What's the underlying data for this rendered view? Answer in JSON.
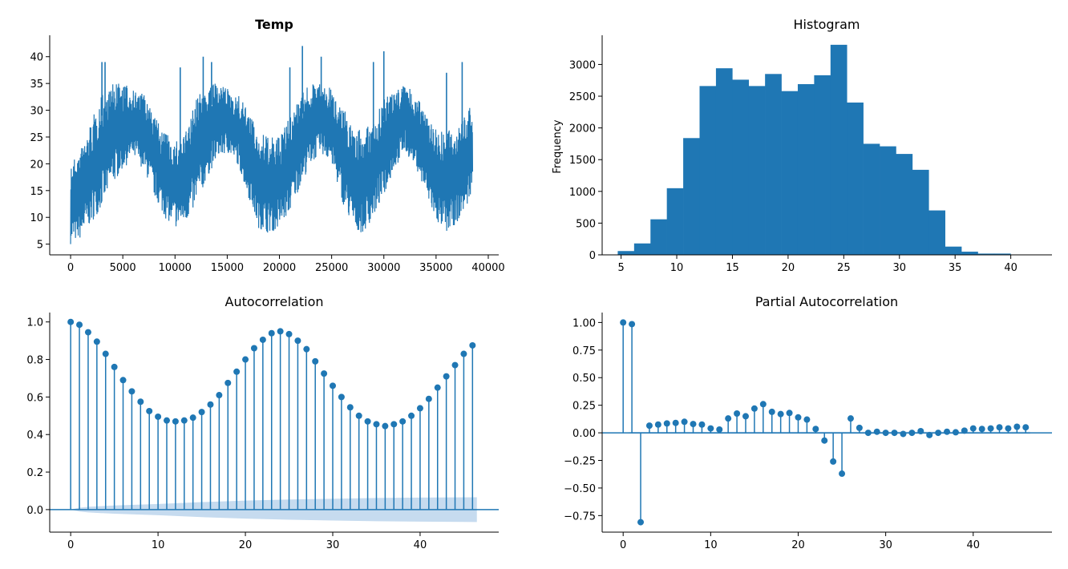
{
  "colors": {
    "series": "#1f77b4",
    "confidence_band": "#c6dbef",
    "axis": "#000000"
  },
  "chart_data": [
    {
      "type": "line",
      "title": "Temp",
      "title_bold": true,
      "xlabel": "",
      "ylabel": "",
      "xlim": [
        -2000,
        41000
      ],
      "ylim": [
        3,
        44
      ],
      "xticks": [
        0,
        5000,
        10000,
        15000,
        20000,
        25000,
        30000,
        35000,
        40000
      ],
      "yticks": [
        5,
        10,
        15,
        20,
        25,
        30,
        35,
        40
      ],
      "x_start": 0,
      "x_end": 38500,
      "series": [
        {
          "envelope": {
            "x": [
              0,
              1000,
              2000,
              3000,
              4000,
              5000,
              6000,
              7000,
              8000,
              9000,
              10000,
              11000,
              12000,
              13000,
              14000,
              15000,
              16000,
              17000,
              18000,
              19000,
              20000,
              21000,
              22000,
              23000,
              24000,
              25000,
              26000,
              27000,
              28000,
              29000,
              30000,
              31000,
              32000,
              33000,
              34000,
              35000,
              36000,
              37000,
              38000,
              38500
            ],
            "low": [
              5,
              6,
              9,
              12,
              16,
              19,
              21,
              19,
              14,
              10,
              8,
              9,
              12,
              17,
              21,
              22,
              20,
              14,
              8,
              7,
              8,
              11,
              16,
              20,
              22,
              20,
              13,
              8,
              7,
              10,
              14,
              19,
              22,
              20,
              14,
              9,
              7,
              9,
              12,
              16
            ],
            "high": [
              20,
              23,
              28,
              33,
              35,
              35,
              34,
              33,
              29,
              26,
              24,
              26,
              32,
              35,
              35,
              34,
              33,
              30,
              26,
              25,
              25,
              29,
              33,
              35,
              35,
              34,
              31,
              27,
              26,
              28,
              32,
              34,
              35,
              33,
              30,
              27,
              26,
              27,
              30,
              31
            ],
            "spikes": [
              [
                3000,
                39
              ],
              [
                3300,
                39
              ],
              [
                10500,
                38
              ],
              [
                12700,
                40
              ],
              [
                13500,
                39
              ],
              [
                21000,
                38
              ],
              [
                22200,
                42
              ],
              [
                24000,
                40
              ],
              [
                29000,
                39
              ],
              [
                30000,
                41
              ],
              [
                36000,
                37
              ],
              [
                37500,
                39
              ]
            ]
          }
        }
      ]
    },
    {
      "type": "bar",
      "title": "Histogram",
      "xlabel": "",
      "ylabel": "Frequency",
      "xlim": [
        3.3,
        43.7
      ],
      "ylim": [
        0,
        3460
      ],
      "xticks": [
        5,
        10,
        15,
        20,
        25,
        30,
        35,
        40
      ],
      "yticks": [
        0,
        500,
        1000,
        1500,
        2000,
        2500,
        3000
      ],
      "bin_edges": [
        4.7,
        6.17,
        7.64,
        9.11,
        10.58,
        12.05,
        13.52,
        14.99,
        16.46,
        17.93,
        19.4,
        20.87,
        22.34,
        23.81,
        25.28,
        26.75,
        28.22,
        29.69,
        31.16,
        32.63,
        34.1,
        35.57,
        37.04,
        38.51,
        39.98
      ],
      "values": [
        60,
        180,
        560,
        1050,
        1840,
        2660,
        2940,
        2760,
        2660,
        2850,
        2580,
        2690,
        2830,
        3310,
        2400,
        1750,
        1710,
        1590,
        1340,
        700,
        130,
        50,
        20,
        20
      ]
    },
    {
      "type": "stem",
      "title": "Autocorrelation",
      "xlabel": "",
      "ylabel": "",
      "xlim": [
        -2.4,
        49
      ],
      "ylim": [
        -0.12,
        1.05
      ],
      "xticks": [
        0,
        10,
        20,
        30,
        40
      ],
      "yticks": [
        0.0,
        0.2,
        0.4,
        0.6,
        0.8,
        1.0
      ],
      "ytick_labels": [
        "0.0",
        "0.2",
        "0.4",
        "0.6",
        "0.8",
        "1.0"
      ],
      "lags": [
        0,
        1,
        2,
        3,
        4,
        5,
        6,
        7,
        8,
        9,
        10,
        11,
        12,
        13,
        14,
        15,
        16,
        17,
        18,
        19,
        20,
        21,
        22,
        23,
        24,
        25,
        26,
        27,
        28,
        29,
        30,
        31,
        32,
        33,
        34,
        35,
        36,
        37,
        38,
        39,
        40,
        41,
        42,
        43,
        44,
        45,
        46
      ],
      "values": [
        1.0,
        0.985,
        0.945,
        0.895,
        0.83,
        0.76,
        0.69,
        0.63,
        0.575,
        0.525,
        0.495,
        0.475,
        0.47,
        0.475,
        0.49,
        0.52,
        0.56,
        0.61,
        0.675,
        0.735,
        0.8,
        0.86,
        0.905,
        0.94,
        0.95,
        0.935,
        0.9,
        0.855,
        0.79,
        0.725,
        0.66,
        0.6,
        0.545,
        0.5,
        0.47,
        0.455,
        0.445,
        0.455,
        0.47,
        0.5,
        0.54,
        0.59,
        0.65,
        0.71,
        0.77,
        0.83,
        0.875
      ],
      "confidence_band": {
        "lags": [
          0,
          1,
          2,
          5,
          10,
          15,
          20,
          25,
          30,
          35,
          40,
          46.5
        ],
        "upper": [
          0.0,
          0.01,
          0.015,
          0.022,
          0.03,
          0.04,
          0.048,
          0.054,
          0.058,
          0.062,
          0.064,
          0.066
        ],
        "lower": [
          0.0,
          -0.01,
          -0.015,
          -0.022,
          -0.03,
          -0.04,
          -0.048,
          -0.054,
          -0.058,
          -0.062,
          -0.064,
          -0.066
        ]
      }
    },
    {
      "type": "stem",
      "title": "Partial Autocorrelation",
      "xlabel": "",
      "ylabel": "",
      "xlim": [
        -2.4,
        49
      ],
      "ylim": [
        -0.9,
        1.09
      ],
      "xticks": [
        0,
        10,
        20,
        30,
        40
      ],
      "yticks": [
        -0.75,
        -0.5,
        -0.25,
        0.0,
        0.25,
        0.5,
        0.75,
        1.0
      ],
      "ytick_labels": [
        "−0.75",
        "−0.50",
        "−0.25",
        "0.00",
        "0.25",
        "0.50",
        "0.75",
        "1.00"
      ],
      "lags": [
        0,
        1,
        2,
        3,
        4,
        5,
        6,
        7,
        8,
        9,
        10,
        11,
        12,
        13,
        14,
        15,
        16,
        17,
        18,
        19,
        20,
        21,
        22,
        23,
        24,
        25,
        26,
        27,
        28,
        29,
        30,
        31,
        32,
        33,
        34,
        35,
        36,
        37,
        38,
        39,
        40,
        41,
        42,
        43,
        44,
        45,
        46
      ],
      "values": [
        1.0,
        0.985,
        -0.81,
        0.065,
        0.075,
        0.085,
        0.09,
        0.1,
        0.08,
        0.075,
        0.04,
        0.03,
        0.13,
        0.175,
        0.15,
        0.22,
        0.26,
        0.19,
        0.17,
        0.18,
        0.14,
        0.12,
        0.035,
        -0.07,
        -0.26,
        -0.37,
        0.13,
        0.045,
        0.0,
        0.01,
        0.0,
        0.0,
        -0.01,
        0.0,
        0.015,
        -0.02,
        0.0,
        0.01,
        0.005,
        0.02,
        0.04,
        0.035,
        0.04,
        0.05,
        0.04,
        0.055,
        0.05
      ],
      "confidence_band": {
        "lags": [
          0,
          1,
          46.5
        ],
        "upper": [
          0.0,
          0.008,
          0.01
        ],
        "lower": [
          0.0,
          -0.008,
          -0.01
        ]
      }
    }
  ]
}
